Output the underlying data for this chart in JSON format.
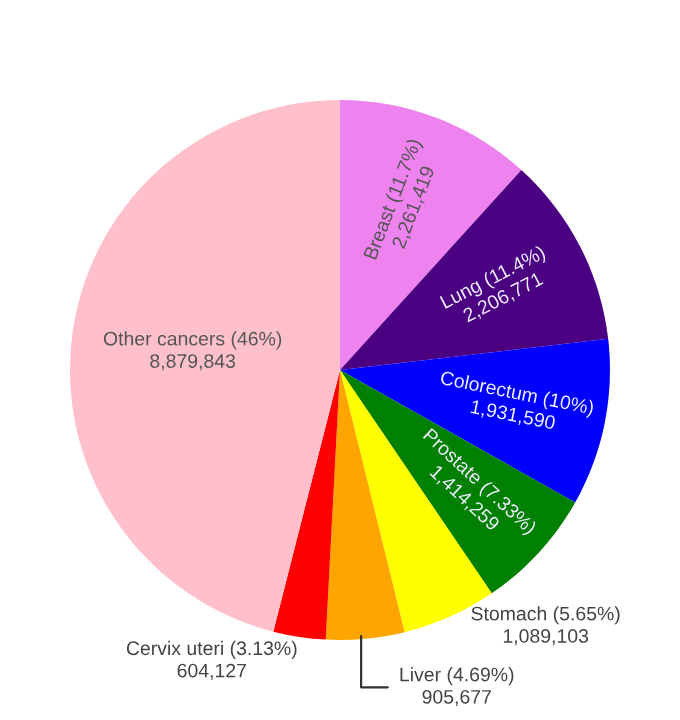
{
  "chart_data": {
    "type": "pie",
    "categories": [
      "Breast (11.7%)",
      "Lung (11.4%)",
      "Colorectum (10%)",
      "Prostate (7.33%)",
      "Stomach (5.65%)",
      "Liver (4.69%)",
      "Cervix uteri (3.13%)",
      "Other cancers (46%)"
    ],
    "values": [
      2261419,
      2206771,
      1931590,
      1414259,
      1089103,
      905677,
      604127,
      8879843
    ],
    "value_labels": [
      "2,261,419",
      "2,206,771",
      "1,931,590",
      "1,414,259",
      "1,089,103",
      "905,677",
      "604,127",
      "8,879,843"
    ],
    "colors": [
      "#ee82ee",
      "#4b0082",
      "#0000ff",
      "#008000",
      "#ffff00",
      "#ffa500",
      "#ff0000",
      "#ffc0cb"
    ]
  }
}
